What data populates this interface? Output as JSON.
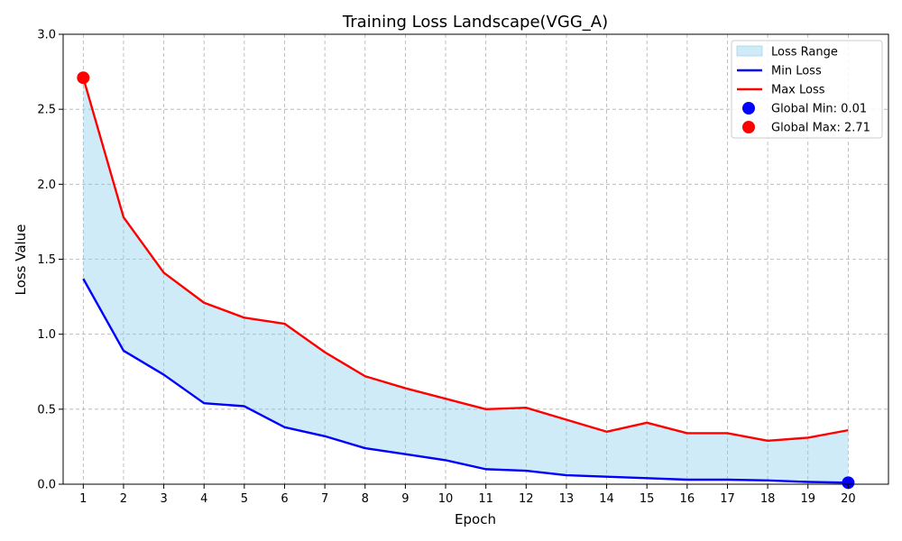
{
  "chart_data": {
    "type": "line",
    "title": "Training Loss Landscape(VGG_A)",
    "xlabel": "Epoch",
    "ylabel": "Loss Value",
    "x": [
      1,
      2,
      3,
      4,
      5,
      6,
      7,
      8,
      9,
      10,
      11,
      12,
      13,
      14,
      15,
      16,
      17,
      18,
      19,
      20
    ],
    "xlim": [
      0.5,
      21
    ],
    "ylim": [
      0,
      3.0
    ],
    "yticks": [
      0.0,
      0.5,
      1.0,
      1.5,
      2.0,
      2.5,
      3.0
    ],
    "ytick_labels": [
      "0.0",
      "0.5",
      "1.0",
      "1.5",
      "2.0",
      "2.5",
      "3.0"
    ],
    "grid": true,
    "legend_position": "top-right",
    "series": [
      {
        "name": "Min Loss",
        "color": "#0000ff",
        "values": [
          1.37,
          0.89,
          0.73,
          0.54,
          0.52,
          0.38,
          0.32,
          0.24,
          0.2,
          0.16,
          0.1,
          0.09,
          0.06,
          0.05,
          0.04,
          0.03,
          0.03,
          0.025,
          0.015,
          0.01
        ]
      },
      {
        "name": "Max Loss",
        "color": "#ff0000",
        "values": [
          2.71,
          1.78,
          1.41,
          1.21,
          1.11,
          1.07,
          0.88,
          0.72,
          0.64,
          0.57,
          0.5,
          0.51,
          0.43,
          0.35,
          0.41,
          0.34,
          0.34,
          0.29,
          0.31,
          0.36
        ]
      }
    ],
    "fill": {
      "name": "Loss Range",
      "color": "#87ceeb"
    },
    "points": [
      {
        "name": "Global Min: 0.01",
        "x": 20,
        "y": 0.01,
        "color": "#0000ff"
      },
      {
        "name": "Global Max: 2.71",
        "x": 1,
        "y": 2.71,
        "color": "#ff0000"
      }
    ],
    "legend": [
      "Loss Range",
      "Min Loss",
      "Max Loss",
      "Global Min: 0.01",
      "Global Max: 2.71"
    ]
  }
}
